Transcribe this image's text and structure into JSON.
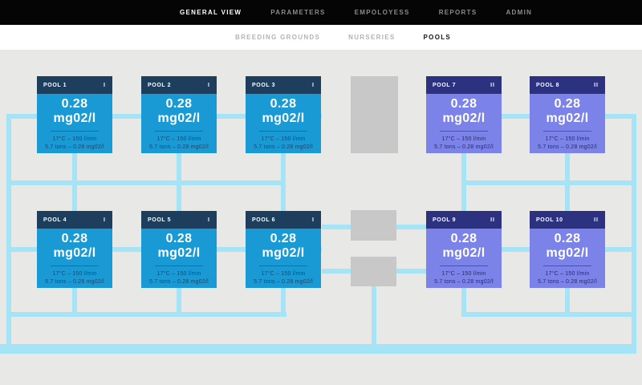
{
  "nav": {
    "items": [
      {
        "label": "GENERAL VIEW",
        "active": true
      },
      {
        "label": "PARAMETERS",
        "active": false
      },
      {
        "label": "EMPOLOYESS",
        "active": false
      },
      {
        "label": "REPORTS",
        "active": false
      },
      {
        "label": "ADMIN",
        "active": false
      }
    ]
  },
  "subnav": {
    "items": [
      {
        "label": "BREEDING GROUNDS",
        "active": false
      },
      {
        "label": "NURSERIES",
        "active": false
      },
      {
        "label": "POOLS",
        "active": true
      }
    ]
  },
  "pools": [
    {
      "name": "POOL 1",
      "badge": "I",
      "value": "0.28",
      "unit": "mg02/l",
      "stat1": "17°C – 150 l/min",
      "stat2": "5.7 tons – 0.28 mg02/l",
      "theme": "blue"
    },
    {
      "name": "POOL 2",
      "badge": "I",
      "value": "0.28",
      "unit": "mg02/l",
      "stat1": "17°C – 150 l/min",
      "stat2": "5.7 tons – 0.28 mg02/l",
      "theme": "blue"
    },
    {
      "name": "POOL 3",
      "badge": "I",
      "value": "0.28",
      "unit": "mg02/l",
      "stat1": "17°C – 150 l/min",
      "stat2": "5.7 tons – 0.28 mg02/l",
      "theme": "blue"
    },
    {
      "name": "POOL 4",
      "badge": "I",
      "value": "0.28",
      "unit": "mg02/l",
      "stat1": "17°C – 150 l/min",
      "stat2": "5.7 tons – 0.28 mg02/l",
      "theme": "blue"
    },
    {
      "name": "POOL 5",
      "badge": "I",
      "value": "0.28",
      "unit": "mg02/l",
      "stat1": "17°C – 150 l/min",
      "stat2": "5.7 tons – 0.28 mg02/l",
      "theme": "blue"
    },
    {
      "name": "POOL 6",
      "badge": "I",
      "value": "0.28",
      "unit": "mg02/l",
      "stat1": "17°C – 150 l/min",
      "stat2": "5.7 tons – 0.28 mg02/l",
      "theme": "blue"
    },
    {
      "name": "POOL 7",
      "badge": "II",
      "value": "0.28",
      "unit": "mg02/l",
      "stat1": "17°C – 150 l/min",
      "stat2": "5.7 tons – 0.28 mg02/l",
      "theme": "purple"
    },
    {
      "name": "POOL 8",
      "badge": "II",
      "value": "0.28",
      "unit": "mg02/l",
      "stat1": "17°C – 150 l/min",
      "stat2": "5.7 tons – 0.28 mg02/l",
      "theme": "purple"
    },
    {
      "name": "POOL 9",
      "badge": "II",
      "value": "0.28",
      "unit": "mg02/l",
      "stat1": "17°C – 150 l/min",
      "stat2": "5.7 tons – 0.28 mg02/l",
      "theme": "purple"
    },
    {
      "name": "POOL 10",
      "badge": "II",
      "value": "0.28",
      "unit": "mg02/l",
      "stat1": "17°C – 150 l/min",
      "stat2": "5.7 tons – 0.28 mg02/l",
      "theme": "purple"
    }
  ],
  "colors": {
    "type_I_header": "#1d3e5c",
    "type_I_body": "#199ad5",
    "type_II_header": "#2c3180",
    "type_II_body": "#7b82e8",
    "pipe": "#a5e3f6",
    "building": "#c8c8c8",
    "background": "#e8e8e7",
    "topbar": "#050505"
  }
}
